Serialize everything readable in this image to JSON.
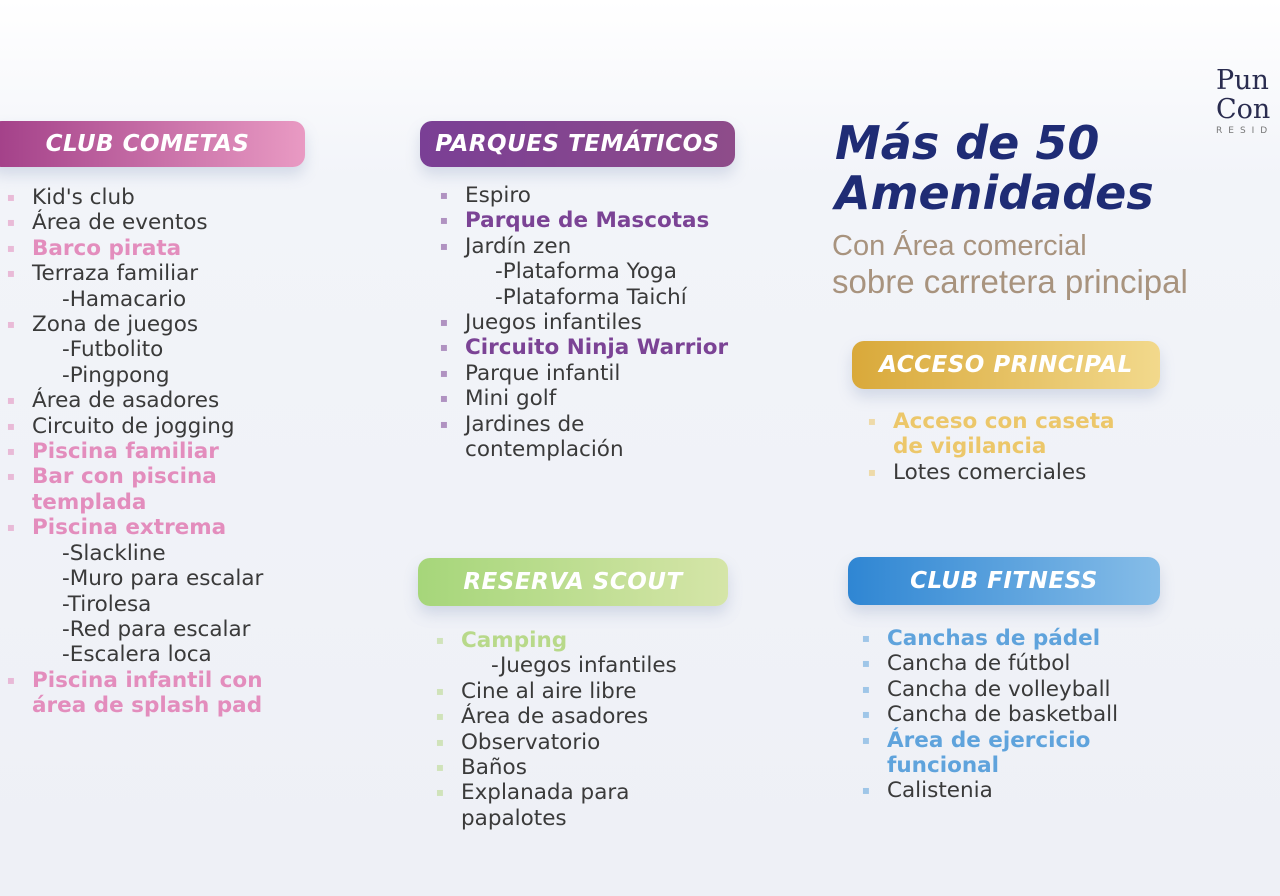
{
  "logo": {
    "line1": "Pun",
    "line2": "Con",
    "line3": "RESID"
  },
  "title": {
    "line1": "Más de 50",
    "line2": "Amenidades"
  },
  "subtitle": {
    "line1": "Con Área comercial",
    "line2": "sobre carretera principal"
  },
  "colors": {
    "club_cometas": "#d979b0",
    "parques": "#7b4395",
    "reserva": "#b8d98a",
    "acceso": "#e6c062",
    "fitness": "#4f9ad9",
    "title": "#1f2c75",
    "text": "#3a3a3a"
  },
  "sections": [
    {
      "id": "club-cometas",
      "label": "CLUB COMETAS",
      "hl": "#e38dbd",
      "items": [
        {
          "t": "Kid's club",
          "icon": "kids-icon"
        },
        {
          "t": "Área de eventos",
          "icon": "events-icon"
        },
        {
          "t": "Barco pirata",
          "icon": "ship-icon",
          "hl": true
        },
        {
          "t": "Terraza familiar",
          "icon": "terrace-icon"
        },
        {
          "t": "-Hamacario",
          "sub": true
        },
        {
          "t": "Zona de juegos",
          "icon": "games-icon"
        },
        {
          "t": "-Futbolito",
          "sub": true
        },
        {
          "t": "-Pingpong",
          "sub": true
        },
        {
          "t": "Área de asadores",
          "icon": "grill-icon"
        },
        {
          "t": "Circuito de jogging",
          "icon": "jogging-icon"
        },
        {
          "t": "Piscina familiar",
          "icon": "pool-icon",
          "hl": true
        },
        {
          "t": "Bar con piscina",
          "icon": "cocktail-icon",
          "hl": true
        },
        {
          "t": "templada",
          "hl": true
        },
        {
          "t": "Piscina extrema",
          "icon": "pool-icon",
          "hl": true
        },
        {
          "t": "-Slackline",
          "sub": true
        },
        {
          "t": "-Muro para escalar",
          "sub": true
        },
        {
          "t": "-Tirolesa",
          "sub": true
        },
        {
          "t": "-Red para escalar",
          "sub": true
        },
        {
          "t": "-Escalera loca",
          "sub": true
        },
        {
          "t": "Piscina infantil con",
          "icon": "splash-icon",
          "hl": true
        },
        {
          "t": "área de splash pad",
          "hl": true
        }
      ]
    },
    {
      "id": "parques",
      "label": "PARQUES TEMÁTICOS",
      "hl": "#7b4395",
      "items": [
        {
          "t": "Espiro",
          "icon": "spiral-icon"
        },
        {
          "t": "Parque de Mascotas",
          "icon": "pet-icon",
          "hl": true
        },
        {
          "t": "Jardín zen",
          "icon": "zen-icon"
        },
        {
          "t": "-Plataforma Yoga",
          "sub": true
        },
        {
          "t": "-Plataforma Taichí",
          "sub": true
        },
        {
          "t": "Juegos infantiles",
          "icon": "playground-icon"
        },
        {
          "t": "Circuito Ninja Warrior",
          "icon": "ninja-icon",
          "hl": true
        },
        {
          "t": "Parque infantil",
          "icon": "park-icon"
        },
        {
          "t": "Mini golf",
          "icon": "golf-icon"
        },
        {
          "t": "Jardines de",
          "icon": "flower-icon"
        },
        {
          "t": "contemplación"
        }
      ]
    },
    {
      "id": "reserva",
      "label": "RESERVA SCOUT",
      "hl": "#b8d98a",
      "items": [
        {
          "t": "Camping",
          "icon": "tent-icon",
          "hl": true
        },
        {
          "t": "-Juegos infantiles",
          "sub": true
        },
        {
          "t": "Cine al aire libre",
          "icon": "cinema-icon"
        },
        {
          "t": "Área de asadores",
          "icon": "grill-icon"
        },
        {
          "t": "Observatorio",
          "icon": "telescope-icon"
        },
        {
          "t": "Baños",
          "icon": "restroom-icon"
        },
        {
          "t": "Explanada para",
          "icon": "kite-icon"
        },
        {
          "t": "papalotes"
        }
      ]
    },
    {
      "id": "acceso",
      "label": "ACCESO PRINCIPAL",
      "hl": "#ecc76a",
      "items": [
        {
          "t": "Acceso con caseta",
          "icon": "guardhouse-icon",
          "hl": true
        },
        {
          "t": "de vigilancia",
          "hl": true
        },
        {
          "t": "Lotes comerciales",
          "icon": "store-icon"
        }
      ]
    },
    {
      "id": "fitness",
      "label": "CLUB FITNESS",
      "hl": "#5fa3dc",
      "items": [
        {
          "t": "Canchas de pádel",
          "icon": "padel-icon",
          "hl": true
        },
        {
          "t": "Cancha de fútbol",
          "icon": "soccer-icon"
        },
        {
          "t": "Cancha de volleyball",
          "icon": "volleyball-icon"
        },
        {
          "t": "Cancha de basketball",
          "icon": "basketball-icon"
        },
        {
          "t": "Área de ejercicio",
          "icon": "exercise-icon",
          "hl": true
        },
        {
          "t": "funcional",
          "hl": true
        },
        {
          "t": "Calistenia",
          "icon": "calisthenics-icon"
        }
      ]
    }
  ]
}
